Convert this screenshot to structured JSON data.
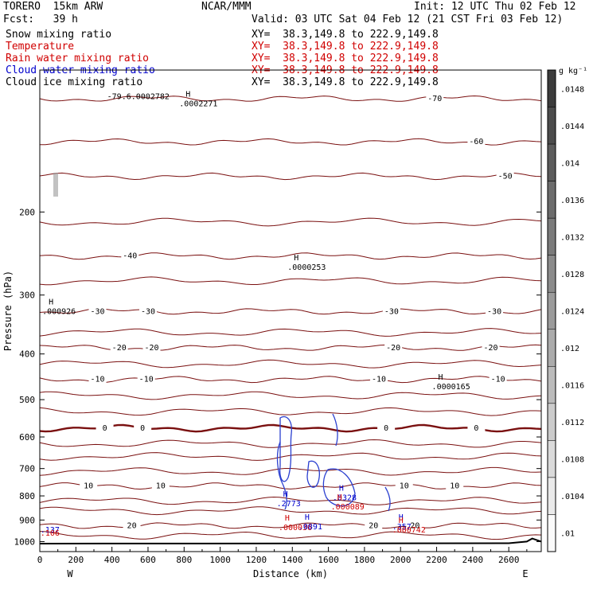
{
  "header": {
    "model": "TORERO  15km ARW",
    "org": "NCAR/MMM",
    "init": "Init: 12 UTC Thu 02 Feb 12",
    "fcst": "Fcst:   39 h",
    "valid": "Valid: 03 UTC Sat 04 Feb 12 (21 CST Fri 03 Feb 12)"
  },
  "fields": [
    {
      "name": "Snow mixing ratio",
      "xy": "XY=  38.3,149.8 to 222.9,149.8",
      "color": "#000000"
    },
    {
      "name": "Temperature",
      "xy": "XY=  38.3,149.8 to 222.9,149.8",
      "color": "#d00000"
    },
    {
      "name": "Rain water mixing ratio",
      "xy": "XY=  38.3,149.8 to 222.9,149.8",
      "color": "#d00000"
    },
    {
      "name": "Cloud water mixing ratio",
      "xy": "XY=  38.3,149.8 to 222.9,149.8",
      "color": "#0000cc"
    },
    {
      "name": "Cloud ice mixing ratio",
      "xy": "XY=  38.3,149.8 to 222.9,149.8",
      "color": "#000000"
    }
  ],
  "chart_data": {
    "type": "contour",
    "xlabel": "Distance (km)",
    "ylabel": "Pressure (hPa)",
    "x_ticks": [
      "0",
      "200",
      "400",
      "600",
      "800",
      "1000",
      "1200",
      "1400",
      "1600",
      "1800",
      "2000",
      "2200",
      "2400",
      "2600"
    ],
    "y_ticks": [
      "200",
      "300",
      "400",
      "500",
      "600",
      "700",
      "800",
      "900",
      "1000"
    ],
    "xlim": [
      0,
      2780
    ],
    "ylim": [
      1050,
      100
    ],
    "west_label": "W",
    "east_label": "E",
    "colorbar": {
      "unit": "g kg⁻¹",
      "labels": [
        ".0148",
        ".0144",
        ".014",
        ".0136",
        ".0132",
        ".0128",
        ".0124",
        ".012",
        ".0116",
        ".0112",
        ".0108",
        ".0104",
        ".01"
      ]
    },
    "temperature_contours": [
      {
        "label": "-70",
        "p": 115,
        "x_labels": [
          2190
        ]
      },
      {
        "label": "-60",
        "p": 142,
        "x_labels": [
          2420
        ]
      },
      {
        "label": "-50",
        "p": 168,
        "x_labels": [
          2580
        ]
      },
      {
        "label": "-40",
        "p": 248,
        "x_labels": [
          500
        ]
      },
      {
        "label": "-30",
        "p": 325,
        "x_labels": [
          320,
          600,
          1950,
          2520
        ]
      },
      {
        "label": "-20",
        "p": 388,
        "x_labels": [
          440,
          620,
          1960,
          2500
        ]
      },
      {
        "label": "-10",
        "p": 453,
        "x_labels": [
          320,
          590,
          1880,
          2540
        ]
      },
      {
        "label": "0",
        "p": 575,
        "x_labels": [
          360,
          570,
          1920,
          2420
        ]
      },
      {
        "label": "10",
        "p": 762,
        "x_labels": [
          270,
          670,
          2020,
          2300
        ]
      },
      {
        "label": "20",
        "p": 925,
        "x_labels": [
          510,
          1850,
          2080
        ]
      }
    ],
    "extrema_labels": [
      {
        "tag": "H",
        "value": ".0002271",
        "x": 800,
        "p": 118,
        "color": "#000000"
      },
      {
        "tag": "H",
        "value": ".0000253",
        "x": 1400,
        "p": 262,
        "color": "#000000"
      },
      {
        "tag": "H",
        "value": ".000926",
        "x": 40,
        "p": 325,
        "color": "#000000"
      },
      {
        "tag": "H",
        "value": ".0000165",
        "x": 2200,
        "p": 470,
        "color": "#000000"
      },
      {
        "tag": "H",
        "value": ".2773",
        "x": 1340,
        "p": 832,
        "color": "#0000cc"
      },
      {
        "tag": "H",
        "value": ".0328",
        "x": 1650,
        "p": 808,
        "color": "#0000cc"
      },
      {
        "tag": "H",
        "value": ".000089",
        "x": 1640,
        "p": 845,
        "color": "#d00000"
      },
      {
        "tag": "H",
        "value": ".000036",
        "x": 1350,
        "p": 935,
        "color": "#d00000"
      },
      {
        "tag": "H",
        "value": ".0891",
        "x": 1460,
        "p": 930,
        "color": "#0000cc"
      },
      {
        "tag": "H",
        "value": ".357",
        "x": 1980,
        "p": 930,
        "color": "#0000cc"
      },
      {
        "tag": "H",
        "value": ".000742",
        "x": 1980,
        "p": 945,
        "color": "#d00000"
      },
      {
        "tag": "",
        "value": ".137",
        "x": 30,
        "p": 945,
        "color": "#0000cc"
      },
      {
        "tag": "",
        "value": ".106",
        "x": 30,
        "p": 960,
        "color": "#d00000"
      },
      {
        "tag": "",
        "value": "-79.6.0002782",
        "x": 400,
        "p": 114,
        "color": "#000000"
      }
    ]
  }
}
